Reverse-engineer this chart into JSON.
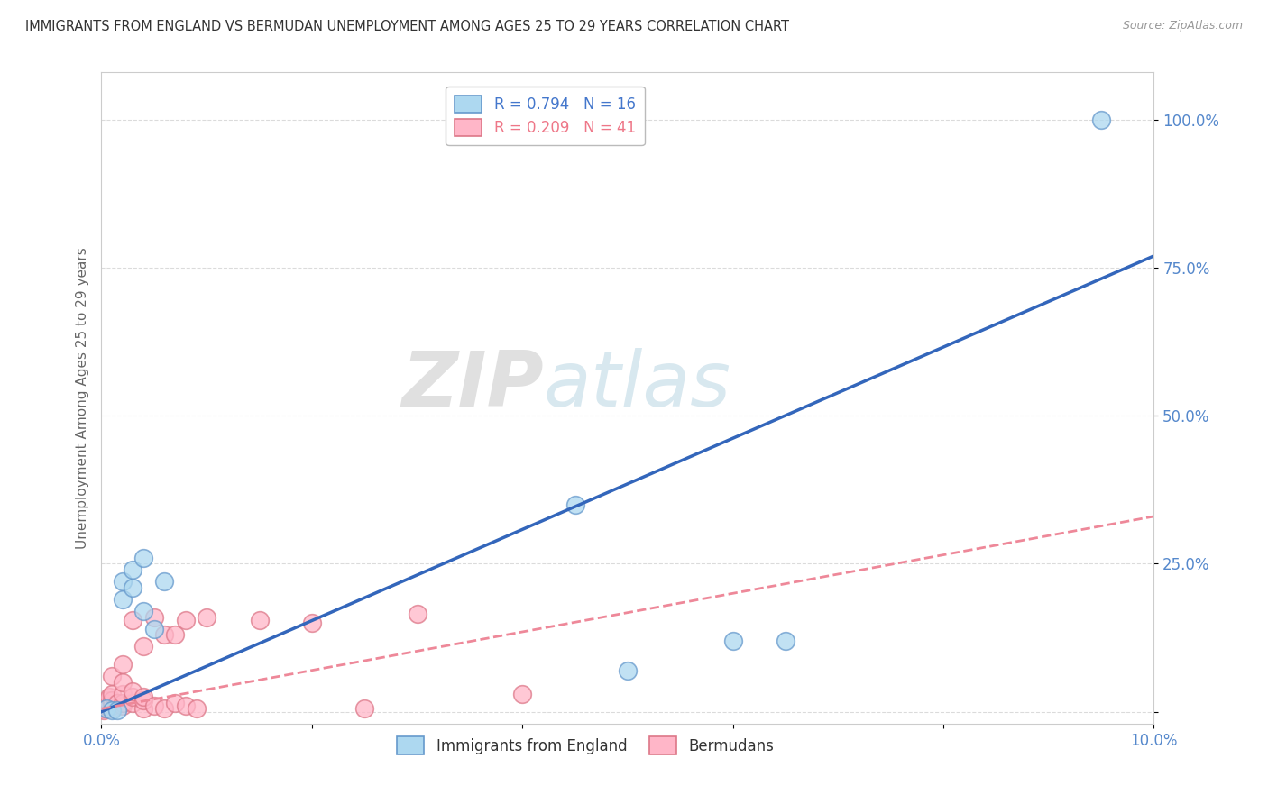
{
  "title": "IMMIGRANTS FROM ENGLAND VS BERMUDAN UNEMPLOYMENT AMONG AGES 25 TO 29 YEARS CORRELATION CHART",
  "source": "Source: ZipAtlas.com",
  "ylabel": "Unemployment Among Ages 25 to 29 years",
  "xlim": [
    0.0,
    0.1
  ],
  "ylim": [
    -0.02,
    1.08
  ],
  "xticks": [
    0.0,
    0.02,
    0.04,
    0.06,
    0.08,
    0.1
  ],
  "xticklabels": [
    "0.0%",
    "",
    "",
    "",
    "",
    "10.0%"
  ],
  "yticks": [
    0.0,
    0.25,
    0.5,
    0.75,
    1.0
  ],
  "yticklabels": [
    "",
    "25.0%",
    "50.0%",
    "75.0%",
    "100.0%"
  ],
  "blue_R": 0.794,
  "blue_N": 16,
  "pink_R": 0.209,
  "pink_N": 41,
  "blue_fill_color": "#ADD8F0",
  "pink_fill_color": "#FFB6C8",
  "blue_edge_color": "#6699CC",
  "pink_edge_color": "#DD7788",
  "blue_line_color": "#3366BB",
  "pink_line_color": "#EE8899",
  "blue_scatter": [
    [
      0.0005,
      0.005
    ],
    [
      0.001,
      0.003
    ],
    [
      0.0015,
      0.002
    ],
    [
      0.002,
      0.22
    ],
    [
      0.002,
      0.19
    ],
    [
      0.003,
      0.24
    ],
    [
      0.003,
      0.21
    ],
    [
      0.004,
      0.26
    ],
    [
      0.004,
      0.17
    ],
    [
      0.005,
      0.14
    ],
    [
      0.006,
      0.22
    ],
    [
      0.045,
      0.35
    ],
    [
      0.05,
      0.07
    ],
    [
      0.06,
      0.12
    ],
    [
      0.065,
      0.12
    ],
    [
      0.095,
      1.0
    ]
  ],
  "pink_scatter": [
    [
      0.0002,
      0.003
    ],
    [
      0.0003,
      0.005
    ],
    [
      0.0004,
      0.008
    ],
    [
      0.0005,
      0.01
    ],
    [
      0.0005,
      0.015
    ],
    [
      0.0006,
      0.02
    ],
    [
      0.0007,
      0.025
    ],
    [
      0.001,
      0.005
    ],
    [
      0.001,
      0.01
    ],
    [
      0.001,
      0.02
    ],
    [
      0.001,
      0.03
    ],
    [
      0.001,
      0.06
    ],
    [
      0.0015,
      0.015
    ],
    [
      0.002,
      0.01
    ],
    [
      0.002,
      0.015
    ],
    [
      0.002,
      0.03
    ],
    [
      0.002,
      0.05
    ],
    [
      0.002,
      0.08
    ],
    [
      0.003,
      0.015
    ],
    [
      0.003,
      0.025
    ],
    [
      0.003,
      0.035
    ],
    [
      0.003,
      0.155
    ],
    [
      0.004,
      0.005
    ],
    [
      0.004,
      0.02
    ],
    [
      0.004,
      0.025
    ],
    [
      0.004,
      0.11
    ],
    [
      0.005,
      0.01
    ],
    [
      0.005,
      0.16
    ],
    [
      0.006,
      0.005
    ],
    [
      0.006,
      0.13
    ],
    [
      0.007,
      0.015
    ],
    [
      0.007,
      0.13
    ],
    [
      0.008,
      0.01
    ],
    [
      0.008,
      0.155
    ],
    [
      0.009,
      0.005
    ],
    [
      0.01,
      0.16
    ],
    [
      0.015,
      0.155
    ],
    [
      0.02,
      0.15
    ],
    [
      0.025,
      0.005
    ],
    [
      0.03,
      0.165
    ],
    [
      0.04,
      0.03
    ]
  ],
  "blue_line_x": [
    0.0,
    0.1
  ],
  "blue_line_y": [
    0.0,
    0.77
  ],
  "pink_line_x": [
    0.0,
    0.1
  ],
  "pink_line_y": [
    0.005,
    0.33
  ],
  "watermark_zip": "ZIP",
  "watermark_atlas": "atlas",
  "background_color": "#FFFFFF",
  "grid_color": "#CCCCCC"
}
